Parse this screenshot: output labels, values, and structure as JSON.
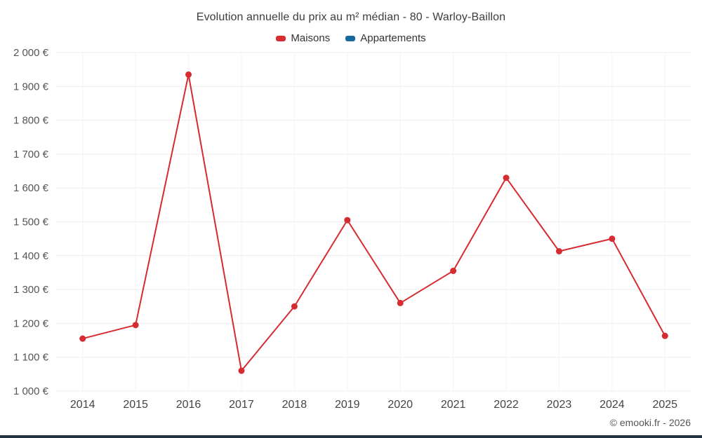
{
  "title": "Evolution annuelle du prix au m² médian - 80 - Warloy-Baillon",
  "legend": {
    "items": [
      {
        "label": "Maisons",
        "color": "#d62b31"
      },
      {
        "label": "Appartements",
        "color": "#15699c"
      }
    ]
  },
  "footer": "© emooki.fr - 2026",
  "colors": {
    "grid": "#ededed",
    "grid_vertical": "#f3f3f3",
    "ytick_text": "#555555",
    "xtick_text": "#444444",
    "bottom_bar": "#253240"
  },
  "chart_data": {
    "type": "line",
    "title": "Evolution annuelle du prix au m² médian - 80 - Warloy-Baillon",
    "xlabel": "",
    "ylabel": "",
    "x": [
      "2014",
      "2015",
      "2016",
      "2017",
      "2018",
      "2019",
      "2020",
      "2021",
      "2022",
      "2023",
      "2024",
      "2025"
    ],
    "series": [
      {
        "name": "Maisons",
        "color": "#d62b31",
        "values": [
          1155,
          1195,
          1935,
          1060,
          1250,
          1505,
          1260,
          1355,
          1630,
          1413,
          1450,
          1163
        ]
      },
      {
        "name": "Appartements",
        "color": "#15699c",
        "values": []
      }
    ],
    "ylim": [
      1000,
      2000
    ],
    "yticks": [
      {
        "value": 1000,
        "label": "1 000 €"
      },
      {
        "value": 1100,
        "label": "1 100 €"
      },
      {
        "value": 1200,
        "label": "1 200 €"
      },
      {
        "value": 1300,
        "label": "1 300 €"
      },
      {
        "value": 1400,
        "label": "1 400 €"
      },
      {
        "value": 1500,
        "label": "1 500 €"
      },
      {
        "value": 1600,
        "label": "1 600 €"
      },
      {
        "value": 1700,
        "label": "1 700 €"
      },
      {
        "value": 1800,
        "label": "1 800 €"
      },
      {
        "value": 1900,
        "label": "1 900 €"
      },
      {
        "value": 2000,
        "label": "2 000 €"
      }
    ],
    "grid": true,
    "legend_position": "top"
  }
}
